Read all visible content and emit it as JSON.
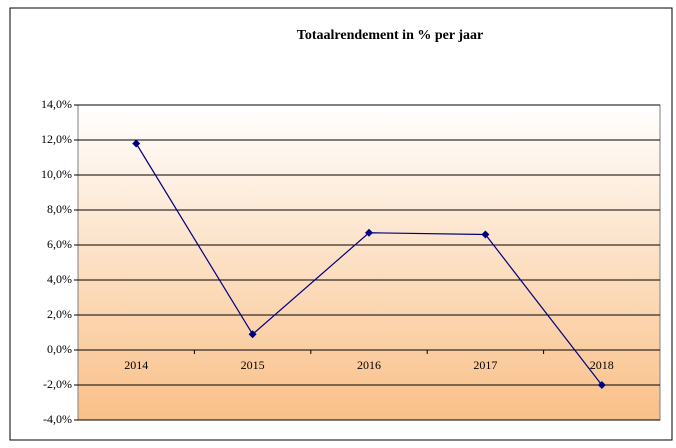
{
  "chart_data": {
    "type": "line",
    "title": "Totaalrendement in % per jaar",
    "categories": [
      "2014",
      "2015",
      "2016",
      "2017",
      "2018"
    ],
    "values": [
      11.8,
      0.9,
      6.7,
      6.6,
      -2.0
    ],
    "color": "#000080",
    "ylim": [
      -4,
      14
    ],
    "yticks": [
      {
        "value": -4,
        "label": "-4,0%"
      },
      {
        "value": -2,
        "label": "-2,0%"
      },
      {
        "value": 0,
        "label": "0,0%"
      },
      {
        "value": 2,
        "label": "2,0%"
      },
      {
        "value": 4,
        "label": "4,0%"
      },
      {
        "value": 6,
        "label": "6,0%"
      },
      {
        "value": 8,
        "label": "8,0%"
      },
      {
        "value": 10,
        "label": "10,0%"
      },
      {
        "value": 12,
        "label": "12,0%"
      },
      {
        "value": 14,
        "label": "14,0%"
      }
    ],
    "grid": true
  }
}
